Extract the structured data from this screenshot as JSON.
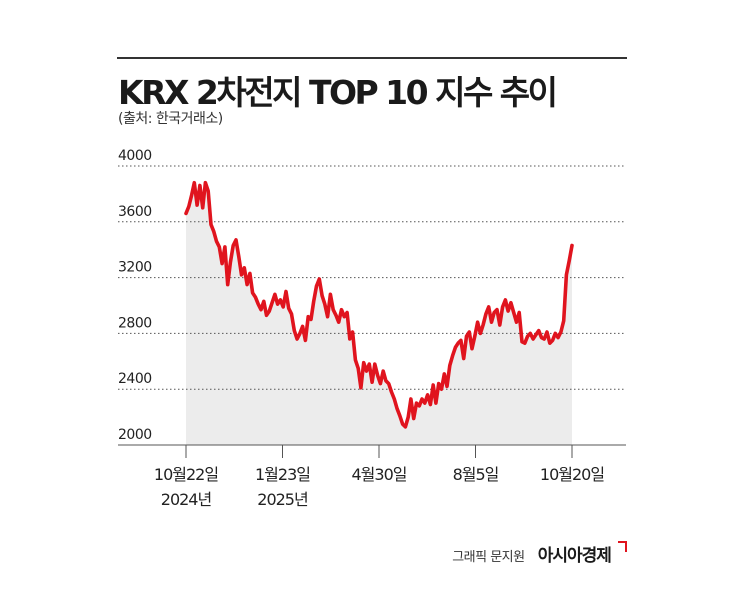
{
  "title": "KRX 2차전지 TOP 10 지수 추이",
  "source": "(출처: 한국거래소)",
  "credit": {
    "graphic": "그래픽 문지원",
    "brand": "아시아경제"
  },
  "colors": {
    "line": "#e0141e",
    "area": "#ececec",
    "grid": "#555555"
  },
  "chart_data": {
    "type": "line",
    "title": "KRX 2차전지 TOP 10 지수 추이",
    "ylim": [
      2000,
      4000
    ],
    "yticks": [
      2000,
      2400,
      2800,
      3200,
      3600,
      4000
    ],
    "grid": true,
    "xtick_labels": [
      {
        "line1": "10월22일",
        "line2": "2024년"
      },
      {
        "line1": "1월23일",
        "line2": "2025년"
      },
      {
        "line1": "4월30일",
        "line2": ""
      },
      {
        "line1": "8월5일",
        "line2": ""
      },
      {
        "line1": "10월20일",
        "line2": ""
      }
    ],
    "series": [
      {
        "values": [
          3660,
          3710,
          3790,
          3880,
          3720,
          3860,
          3700,
          3880,
          3820,
          3580,
          3530,
          3460,
          3420,
          3300,
          3420,
          3150,
          3310,
          3430,
          3470,
          3350,
          3220,
          3270,
          3150,
          3230,
          3090,
          3060,
          3010,
          2970,
          3030,
          2930,
          2960,
          3020,
          3080,
          3010,
          3040,
          2990,
          3100,
          2980,
          2940,
          2820,
          2760,
          2800,
          2850,
          2750,
          2920,
          2900,
          3030,
          3140,
          3190,
          3070,
          3010,
          2920,
          3080,
          2970,
          2930,
          2880,
          2970,
          2920,
          2950,
          2760,
          2810,
          2610,
          2550,
          2410,
          2590,
          2530,
          2580,
          2450,
          2580,
          2500,
          2440,
          2530,
          2460,
          2440,
          2380,
          2330,
          2260,
          2210,
          2150,
          2130,
          2200,
          2330,
          2190,
          2300,
          2280,
          2330,
          2300,
          2360,
          2290,
          2430,
          2300,
          2440,
          2400,
          2510,
          2420,
          2570,
          2640,
          2700,
          2730,
          2750,
          2620,
          2780,
          2810,
          2690,
          2780,
          2880,
          2800,
          2860,
          2940,
          2990,
          2880,
          2950,
          2970,
          2860,
          2990,
          3040,
          2960,
          3020,
          2950,
          2880,
          2950,
          2740,
          2730,
          2780,
          2800,
          2760,
          2790,
          2820,
          2770,
          2760,
          2810,
          2730,
          2750,
          2800,
          2770,
          2810,
          2890,
          3220,
          3320,
          3430
        ]
      }
    ]
  }
}
